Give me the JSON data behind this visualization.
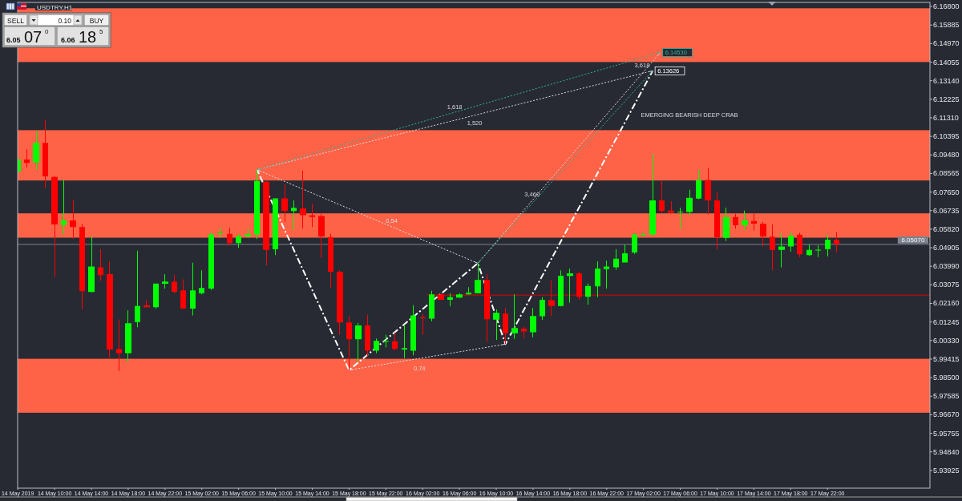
{
  "chart_data": {
    "type": "candlestick",
    "title": "USDTRY,H1",
    "x": [
      "2019-05-14T06:00",
      "2019-05-14T07:00",
      "2019-05-14T08:00",
      "2019-05-14T09:00",
      "2019-05-14T10:00",
      "2019-05-14T11:00",
      "2019-05-14T12:00",
      "2019-05-14T13:00",
      "2019-05-14T14:00",
      "2019-05-14T15:00",
      "2019-05-14T16:00",
      "2019-05-14T17:00",
      "2019-05-14T18:00",
      "2019-05-14T19:00",
      "2019-05-14T20:00",
      "2019-05-14T21:00",
      "2019-05-14T22:00",
      "2019-05-14T23:00",
      "2019-05-15T00:00",
      "2019-05-15T01:00",
      "2019-05-15T02:00",
      "2019-05-15T03:00",
      "2019-05-15T04:00",
      "2019-05-15T05:00",
      "2019-05-15T06:00",
      "2019-05-15T07:00",
      "2019-05-15T08:00",
      "2019-05-15T09:00",
      "2019-05-15T10:00",
      "2019-05-15T11:00",
      "2019-05-15T12:00",
      "2019-05-15T13:00",
      "2019-05-15T14:00",
      "2019-05-15T15:00",
      "2019-05-15T16:00",
      "2019-05-15T17:00",
      "2019-05-15T18:00",
      "2019-05-15T19:00",
      "2019-05-15T20:00",
      "2019-05-15T21:00",
      "2019-05-15T22:00",
      "2019-05-15T23:00",
      "2019-05-16T00:00",
      "2019-05-16T01:00",
      "2019-05-16T02:00",
      "2019-05-16T03:00",
      "2019-05-16T04:00",
      "2019-05-16T05:00",
      "2019-05-16T06:00",
      "2019-05-16T07:00",
      "2019-05-16T08:00",
      "2019-05-16T09:00",
      "2019-05-16T10:00",
      "2019-05-16T11:00",
      "2019-05-16T12:00",
      "2019-05-16T13:00",
      "2019-05-16T14:00",
      "2019-05-16T15:00",
      "2019-05-16T16:00",
      "2019-05-16T17:00",
      "2019-05-16T18:00",
      "2019-05-16T19:00",
      "2019-05-16T20:00",
      "2019-05-16T21:00",
      "2019-05-16T22:00",
      "2019-05-16T23:00",
      "2019-05-17T00:00",
      "2019-05-17T01:00",
      "2019-05-17T02:00",
      "2019-05-17T03:00",
      "2019-05-17T04:00",
      "2019-05-17T05:00",
      "2019-05-17T06:00",
      "2019-05-17T07:00",
      "2019-05-17T08:00",
      "2019-05-17T09:00",
      "2019-05-17T10:00",
      "2019-05-17T11:00",
      "2019-05-17T12:00",
      "2019-05-17T13:00",
      "2019-05-17T14:00",
      "2019-05-17T15:00",
      "2019-05-17T16:00",
      "2019-05-17T17:00",
      "2019-05-17T18:00",
      "2019-05-17T19:00",
      "2019-05-17T20:00",
      "2019-05-17T21:00",
      "2019-05-17T22:00",
      "2019-05-17T23:00"
    ],
    "ohlc": [
      [
        6.0865,
        6.0933,
        6.0858,
        6.0924
      ],
      [
        6.0925,
        6.0977,
        6.0886,
        6.0909
      ],
      [
        6.0911,
        6.1066,
        6.0875,
        6.1007
      ],
      [
        6.1007,
        6.1122,
        6.0787,
        6.0842
      ],
      [
        6.0839,
        6.0842,
        6.0348,
        6.0605
      ],
      [
        6.0602,
        6.0826,
        6.0556,
        6.0625
      ],
      [
        6.0625,
        6.0726,
        6.0533,
        6.0592
      ],
      [
        6.0592,
        6.0608,
        6.0187,
        6.0276
      ],
      [
        6.0272,
        6.0546,
        6.027,
        6.0398
      ],
      [
        6.0394,
        6.0484,
        6.0328,
        6.0355
      ],
      [
        6.036,
        6.0423,
        5.9949,
        5.9989
      ],
      [
        5.9991,
        6.0137,
        5.9883,
        5.997
      ],
      [
        5.997,
        6.0181,
        5.9926,
        6.0118
      ],
      [
        6.0124,
        6.0476,
        6.0098,
        6.0203
      ],
      [
        6.0206,
        6.0234,
        6.0197,
        6.0197
      ],
      [
        6.0197,
        6.0314,
        6.019,
        6.0314
      ],
      [
        6.0313,
        6.036,
        6.0289,
        6.0324
      ],
      [
        6.0323,
        6.0357,
        6.0265,
        6.0273
      ],
      [
        6.028,
        6.0335,
        6.019,
        6.019
      ],
      [
        6.019,
        6.0417,
        6.0157,
        6.028
      ],
      [
        6.0265,
        6.0379,
        6.026,
        6.0292
      ],
      [
        6.0289,
        6.0568,
        6.0281,
        6.0556
      ],
      [
        6.056,
        6.0589,
        6.0539,
        6.0562
      ],
      [
        6.0559,
        6.0589,
        6.05,
        6.0513
      ],
      [
        6.0513,
        6.0558,
        6.049,
        6.0547
      ],
      [
        6.0547,
        6.0585,
        6.0539,
        6.0556
      ],
      [
        6.0556,
        6.0875,
        6.0533,
        6.082
      ],
      [
        6.0816,
        6.082,
        6.0405,
        6.048
      ],
      [
        6.0483,
        6.0736,
        6.0454,
        6.0734
      ],
      [
        6.0734,
        6.0803,
        6.0618,
        6.0671
      ],
      [
        6.0671,
        6.0724,
        6.0579,
        6.0687
      ],
      [
        6.0684,
        6.0871,
        6.0585,
        6.0651
      ],
      [
        6.0651,
        6.0708,
        6.0592,
        6.0642
      ],
      [
        6.0647,
        6.066,
        6.044,
        6.0546
      ],
      [
        6.0543,
        6.0559,
        6.0293,
        6.0372
      ],
      [
        6.0372,
        6.0379,
        6.0061,
        6.0122
      ],
      [
        6.0122,
        6.0154,
        5.9887,
        6.0039
      ],
      [
        6.0039,
        6.012,
        5.9926,
        6.0107
      ],
      [
        6.0107,
        6.016,
        5.9953,
        5.9983
      ],
      [
        5.9983,
        6.0043,
        5.997,
        6.0031
      ],
      [
        6.0028,
        6.0062,
        5.9999,
        6.0031
      ],
      [
        6.0029,
        6.0072,
        5.9986,
        5.9992
      ],
      [
        5.9989,
        6.0111,
        5.9946,
        5.9996
      ],
      [
        5.9983,
        6.0207,
        5.996,
        6.0157
      ],
      [
        6.0147,
        6.0164,
        6.0062,
        6.0143
      ],
      [
        6.0141,
        6.0278,
        6.0128,
        6.026
      ],
      [
        6.026,
        6.0262,
        6.0234,
        6.0234
      ],
      [
        6.0234,
        6.0265,
        6.0201,
        6.0247
      ],
      [
        6.0245,
        6.0266,
        6.0242,
        6.026
      ],
      [
        6.026,
        6.0296,
        6.0258,
        6.0269
      ],
      [
        6.0266,
        6.0414,
        6.0264,
        6.0332
      ],
      [
        6.0332,
        6.0361,
        6.0025,
        6.0138
      ],
      [
        6.0136,
        6.0186,
        6.0036,
        6.017
      ],
      [
        6.0166,
        6.0194,
        6.0015,
        6.0069
      ],
      [
        6.0069,
        6.026,
        6.0041,
        6.0094
      ],
      [
        6.0091,
        6.0102,
        6.0045,
        6.0078
      ],
      [
        6.0074,
        6.0194,
        6.0049,
        6.0154
      ],
      [
        6.0153,
        6.0247,
        6.0134,
        6.0234
      ],
      [
        6.0232,
        6.0332,
        6.0153,
        6.0203
      ],
      [
        6.0203,
        6.0379,
        6.0201,
        6.0352
      ],
      [
        6.0351,
        6.0388,
        6.0219,
        6.0364
      ],
      [
        6.0364,
        6.0372,
        6.0234,
        6.0249
      ],
      [
        6.0249,
        6.0315,
        6.021,
        6.0302
      ],
      [
        6.03,
        6.0423,
        6.0247,
        6.0388
      ],
      [
        6.0385,
        6.0427,
        6.0289,
        6.0398
      ],
      [
        6.0394,
        6.0484,
        6.0381,
        6.0436
      ],
      [
        6.0418,
        6.0506,
        6.0418,
        6.0463
      ],
      [
        6.0467,
        6.0562,
        6.0459,
        6.0556
      ],
      [
        6.0556,
        6.0566,
        6.0546,
        6.0558
      ],
      [
        6.0556,
        6.0952,
        6.055,
        6.0724
      ],
      [
        6.0724,
        6.0818,
        6.0664,
        6.0671
      ],
      [
        6.0673,
        6.072,
        6.066,
        6.0663
      ],
      [
        6.0665,
        6.0688,
        6.0585,
        6.0668
      ],
      [
        6.0667,
        6.0776,
        6.0651,
        6.0737
      ],
      [
        6.0733,
        6.0875,
        6.073,
        6.0825
      ],
      [
        6.0825,
        6.0884,
        6.0654,
        6.0724
      ],
      [
        6.0724,
        6.0767,
        6.0483,
        6.0542
      ],
      [
        6.0539,
        6.0688,
        6.0523,
        6.0642
      ],
      [
        6.0642,
        6.0658,
        6.0585,
        6.0601
      ],
      [
        6.0601,
        6.0673,
        6.0579,
        6.0625
      ],
      [
        6.0622,
        6.066,
        6.0576,
        6.0609
      ],
      [
        6.0608,
        6.0618,
        6.0496,
        6.0546
      ],
      [
        6.0545,
        6.0605,
        6.0379,
        6.048
      ],
      [
        6.048,
        6.0563,
        6.0394,
        6.0497
      ],
      [
        6.0497,
        6.0568,
        6.0471,
        6.055
      ],
      [
        6.0555,
        6.0564,
        6.0444,
        6.0458
      ],
      [
        6.0454,
        6.0506,
        6.0451,
        6.048
      ],
      [
        6.0479,
        6.0502,
        6.0444,
        6.0481
      ],
      [
        6.0484,
        6.0555,
        6.0447,
        6.053
      ],
      [
        6.053,
        6.0569,
        6.0467,
        6.0507
      ]
    ],
    "colors": [
      "#00ff00",
      "#ff0000",
      "#00ff00",
      "#ff0000",
      "#ff0000",
      "#00ff00",
      "#ff0000",
      "#ff0000",
      "#00ff00",
      "#ff0000",
      "#ff0000",
      "#ff0000",
      "#00ff00",
      "#00ff00",
      "#ff0000",
      "#00ff00",
      "#00ff00",
      "#ff0000",
      "#ff0000",
      "#00ff00",
      "#00ff00",
      "#00ff00",
      "#00ff00",
      "#ff0000",
      "#00ff00",
      "#00ff00",
      "#00ff00",
      "#ff0000",
      "#00ff00",
      "#ff0000",
      "#00ff00",
      "#ff0000",
      "#ff0000",
      "#ff0000",
      "#ff0000",
      "#ff0000",
      "#ff0000",
      "#00ff00",
      "#ff0000",
      "#00ff00",
      "#00ff00",
      "#ff0000",
      "#00ff00",
      "#00ff00",
      "#ff0000",
      "#00ff00",
      "#ff0000",
      "#00ff00",
      "#00ff00",
      "#00ff00",
      "#00ff00",
      "#ff0000",
      "#00ff00",
      "#ff0000",
      "#00ff00",
      "#ff0000",
      "#00ff00",
      "#00ff00",
      "#ff0000",
      "#00ff00",
      "#00ff00",
      "#ff0000",
      "#00ff00",
      "#00ff00",
      "#00ff00",
      "#00ff00",
      "#00ff00",
      "#00ff00",
      "#00ff00",
      "#00ff00",
      "#ff0000",
      "#ff0000",
      "#00ff00",
      "#00ff00",
      "#00ff00",
      "#ff0000",
      "#ff0000",
      "#00ff00",
      "#ff0000",
      "#00ff00",
      "#ff0000",
      "#ff0000",
      "#ff0000",
      "#00ff00",
      "#00ff00",
      "#ff0000",
      "#00ff00",
      "#00ff00",
      "#00ff00",
      "#ff0000"
    ],
    "xlim": [
      "2019-05-14T05:59",
      "2019-05-18T09:08"
    ],
    "xticks": [
      {
        "value": "2019-05-14T06:00",
        "label": "14 May 2019"
      },
      {
        "value": "2019-05-14T10:00",
        "label": "14 May 10:00"
      },
      {
        "value": "2019-05-14T14:00",
        "label": "14 May 14:00"
      },
      {
        "value": "2019-05-14T18:00",
        "label": "14 May 18:00"
      },
      {
        "value": "2019-05-14T22:00",
        "label": "14 May 22:00"
      },
      {
        "value": "2019-05-15T02:00",
        "label": "15 May 02:00"
      },
      {
        "value": "2019-05-15T06:00",
        "label": "15 May 06:00"
      },
      {
        "value": "2019-05-15T10:00",
        "label": "15 May 10:00"
      },
      {
        "value": "2019-05-15T14:00",
        "label": "15 May 14:00"
      },
      {
        "value": "2019-05-15T18:00",
        "label": "15 May 18:00"
      },
      {
        "value": "2019-05-15T22:00",
        "label": "15 May 22:00"
      },
      {
        "value": "2019-05-16T02:00",
        "label": "16 May 02:00"
      },
      {
        "value": "2019-05-16T06:00",
        "label": "16 May 06:00"
      },
      {
        "value": "2019-05-16T10:00",
        "label": "16 May 10:00"
      },
      {
        "value": "2019-05-16T14:00",
        "label": "16 May 14:00"
      },
      {
        "value": "2019-05-16T18:00",
        "label": "16 May 18:00"
      },
      {
        "value": "2019-05-16T22:00",
        "label": "16 May 22:00"
      },
      {
        "value": "2019-05-17T02:00",
        "label": "17 May 02:00"
      },
      {
        "value": "2019-05-17T06:00",
        "label": "17 May 06:00"
      },
      {
        "value": "2019-05-17T10:00",
        "label": "17 May 10:00"
      },
      {
        "value": "2019-05-17T14:00",
        "label": "17 May 14:00"
      },
      {
        "value": "2019-05-17T18:00",
        "label": "17 May 18:00"
      },
      {
        "value": "2019-05-17T22:00",
        "label": "17 May 22:00"
      }
    ],
    "ylim": [
      5.9305,
      6.17
    ],
    "yticks": [
      {
        "value": 6.168,
        "label": "6.16800"
      },
      {
        "value": 6.15885,
        "label": "6.15885"
      },
      {
        "value": 6.1497,
        "label": "6.14970"
      },
      {
        "value": 6.14055,
        "label": "6.14055"
      },
      {
        "value": 6.1314,
        "label": "6.13140"
      },
      {
        "value": 6.12225,
        "label": "6.12225"
      },
      {
        "value": 6.1131,
        "label": "6.11310"
      },
      {
        "value": 6.10395,
        "label": "6.10395"
      },
      {
        "value": 6.0948,
        "label": "6.09480"
      },
      {
        "value": 6.08565,
        "label": "6.08565"
      },
      {
        "value": 6.0765,
        "label": "6.07650"
      },
      {
        "value": 6.06735,
        "label": "6.06735"
      },
      {
        "value": 6.0582,
        "label": "6.05820"
      },
      {
        "value": 6.04905,
        "label": "6.04905"
      },
      {
        "value": 6.0399,
        "label": "6.03990"
      },
      {
        "value": 6.03075,
        "label": "6.03075"
      },
      {
        "value": 6.0216,
        "label": "6.02160"
      },
      {
        "value": 6.01245,
        "label": "6.01245"
      },
      {
        "value": 6.0033,
        "label": "6.00330"
      },
      {
        "value": 5.99415,
        "label": "5.99415"
      },
      {
        "value": 5.985,
        "label": "5.98500"
      },
      {
        "value": 5.97585,
        "label": "5.97585"
      },
      {
        "value": 5.9667,
        "label": "5.96670"
      },
      {
        "value": 5.95755,
        "label": "5.95755"
      },
      {
        "value": 5.9484,
        "label": "5.94840"
      },
      {
        "value": 5.93925,
        "label": "5.93925"
      }
    ],
    "bands": [
      {
        "axis": "y",
        "from": 6.1406,
        "to": 6.1671,
        "color": "#ff6347"
      },
      {
        "axis": "y",
        "from": 6.0822,
        "to": 6.107,
        "color": "#ff6347"
      },
      {
        "axis": "y",
        "from": 6.054,
        "to": 6.066,
        "color": "#ff6347"
      },
      {
        "axis": "y",
        "from": 5.9677,
        "to": 5.9943,
        "color": "#ff6347"
      }
    ],
    "ref_lines": [
      {
        "axis": "y",
        "value": 6.0507,
        "label": "6.05070",
        "color": "#7d828d"
      }
    ],
    "series": [
      {
        "type": "line",
        "x": [
          "2019-05-16T02:30",
          "2019-05-18T09:08"
        ],
        "values": [
          6.0257,
          6.0257
        ],
        "color": "#e00000",
        "line_style": "solid"
      },
      {
        "type": "line",
        "x": [
          "2019-05-15T08:00",
          "2019-05-15T18:00",
          "2019-05-16T08:00",
          "2019-05-16T11:00",
          "2019-05-17T03:00"
        ],
        "values": [
          6.0875,
          5.9887,
          6.0414,
          6.0015,
          6.13626
        ],
        "value_labels": [
          null,
          null,
          null,
          null,
          "6.13626"
        ],
        "color": "#ffffff",
        "line_style": "dashed"
      },
      {
        "type": "line",
        "name": "0,54",
        "x": [
          "2019-05-15T08:00",
          "2019-05-16T08:00"
        ],
        "values": [
          6.0875,
          6.0414
        ],
        "color": "#d8dce2",
        "line_style": "dotted"
      },
      {
        "type": "line",
        "name": "0,74",
        "x": [
          "2019-05-15T18:00",
          "2019-05-16T11:00"
        ],
        "values": [
          5.9887,
          6.0015
        ],
        "color": "#d8dce2",
        "line_style": "dotted"
      },
      {
        "type": "line",
        "name": "1,520",
        "x": [
          "2019-05-15T08:00",
          "2019-05-17T03:00"
        ],
        "values": [
          6.0875,
          6.1363
        ],
        "color": "#d8dce2",
        "line_style": "dotted"
      },
      {
        "type": "line",
        "name": "3,618",
        "x": [
          "2019-05-16T08:00",
          "2019-05-17T03:50"
        ],
        "values": [
          6.0414,
          6.1453
        ],
        "color": "#d8dce2",
        "line_style": "dotted"
      },
      {
        "type": "line",
        "name": "1,618",
        "x": [
          "2019-05-15T08:00",
          "2019-05-17T03:50"
        ],
        "values": [
          6.0875,
          6.1453
        ],
        "value_labels": [
          null,
          "6.14530"
        ],
        "color": "#2db39a",
        "line_style": "dotted"
      },
      {
        "type": "line",
        "name": "3,460",
        "x": [
          "2019-05-16T08:00",
          "2019-05-17T03:00"
        ],
        "values": [
          6.0414,
          6.1363
        ],
        "color": "#2db39a",
        "line_style": "dotted"
      }
    ],
    "annotations": [
      "SELL",
      "BUY",
      "0.10",
      "6.05",
      "07",
      "0",
      "6.06",
      "18",
      "5",
      "EMERGING BEARISH DEEP CRAB"
    ]
  }
}
